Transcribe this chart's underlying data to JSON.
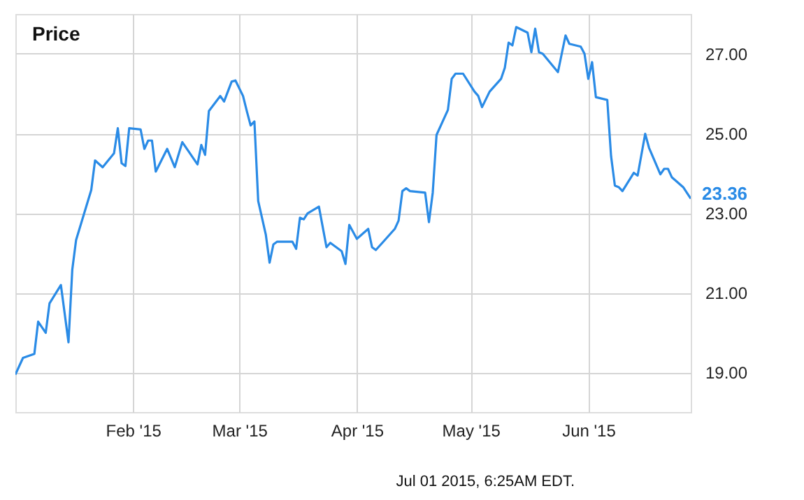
{
  "chart_data": {
    "type": "line",
    "title": "Price",
    "x": [
      "2015-01-01",
      "2015-01-03",
      "2015-01-06",
      "2015-01-07",
      "2015-01-09",
      "2015-01-10",
      "2015-01-13",
      "2015-01-15",
      "2015-01-16",
      "2015-01-17",
      "2015-01-21",
      "2015-01-22",
      "2015-01-24",
      "2015-01-27",
      "2015-01-28",
      "2015-01-29",
      "2015-01-30",
      "2015-01-31",
      "2015-02-03",
      "2015-02-04",
      "2015-02-05",
      "2015-02-06",
      "2015-02-07",
      "2015-02-10",
      "2015-02-12",
      "2015-02-14",
      "2015-02-18",
      "2015-02-19",
      "2015-02-20",
      "2015-02-21",
      "2015-02-24",
      "2015-02-25",
      "2015-02-27",
      "2015-02-28",
      "2015-03-02",
      "2015-03-03",
      "2015-03-04",
      "2015-03-05",
      "2015-03-06",
      "2015-03-08",
      "2015-03-09",
      "2015-03-10",
      "2015-03-11",
      "2015-03-15",
      "2015-03-16",
      "2015-03-17",
      "2015-03-18",
      "2015-03-19",
      "2015-03-22",
      "2015-03-24",
      "2015-03-25",
      "2015-03-28",
      "2015-03-29",
      "2015-03-30",
      "2015-04-01",
      "2015-04-04",
      "2015-04-05",
      "2015-04-06",
      "2015-04-08",
      "2015-04-11",
      "2015-04-12",
      "2015-04-13",
      "2015-04-14",
      "2015-04-15",
      "2015-04-19",
      "2015-04-20",
      "2015-04-21",
      "2015-04-22",
      "2015-04-25",
      "2015-04-26",
      "2015-04-27",
      "2015-04-29",
      "2015-05-02",
      "2015-05-03",
      "2015-05-04",
      "2015-05-06",
      "2015-05-09",
      "2015-05-10",
      "2015-05-11",
      "2015-05-12",
      "2015-05-13",
      "2015-05-16",
      "2015-05-17",
      "2015-05-18",
      "2015-05-19",
      "2015-05-20",
      "2015-05-24",
      "2015-05-26",
      "2015-05-27",
      "2015-05-30",
      "2015-05-31",
      "2015-06-01",
      "2015-06-02",
      "2015-06-03",
      "2015-06-06",
      "2015-06-07",
      "2015-06-08",
      "2015-06-09",
      "2015-06-10",
      "2015-06-13",
      "2015-06-14",
      "2015-06-16",
      "2015-06-17",
      "2015-06-20",
      "2015-06-21",
      "2015-06-22",
      "2015-06-23",
      "2015-06-26",
      "2015-06-28"
    ],
    "series": [
      {
        "color": "#2a8be6",
        "values": [
          18.94,
          19.36,
          19.46,
          20.27,
          19.99,
          20.73,
          21.19,
          19.75,
          21.58,
          22.32,
          23.58,
          24.32,
          24.15,
          24.5,
          25.13,
          24.25,
          24.18,
          25.13,
          25.1,
          24.61,
          24.82,
          24.82,
          24.04,
          24.61,
          24.15,
          24.78,
          24.22,
          24.71,
          24.46,
          25.56,
          25.94,
          25.8,
          26.3,
          26.33,
          25.94,
          25.56,
          25.2,
          25.3,
          23.3,
          22.46,
          21.75,
          22.21,
          22.28,
          22.28,
          22.1,
          22.88,
          22.84,
          22.99,
          23.16,
          22.14,
          22.25,
          22.04,
          21.72,
          22.7,
          22.35,
          22.6,
          22.14,
          22.07,
          22.28,
          22.6,
          22.81,
          23.55,
          23.62,
          23.55,
          23.51,
          22.77,
          23.51,
          24.96,
          25.59,
          26.37,
          26.5,
          26.5,
          26.05,
          25.94,
          25.66,
          26.05,
          26.37,
          26.65,
          27.28,
          27.21,
          27.67,
          27.53,
          27.04,
          27.63,
          27.04,
          27.0,
          26.54,
          27.46,
          27.25,
          27.18,
          27.0,
          26.37,
          26.79,
          25.91,
          25.84,
          24.43,
          23.69,
          23.65,
          23.55,
          24.01,
          23.94,
          24.99,
          24.64,
          23.97,
          24.11,
          24.11,
          23.9,
          23.65,
          23.36
        ]
      }
    ],
    "xlim": [
      "2015-01-01",
      "2015-06-28"
    ],
    "xticks": [
      {
        "value": "2015-02-01",
        "label": "Feb '15"
      },
      {
        "value": "2015-03-01",
        "label": "Mar '15"
      },
      {
        "value": "2015-04-01",
        "label": "Apr '15"
      },
      {
        "value": "2015-05-01",
        "label": "May '15"
      },
      {
        "value": "2015-06-01",
        "label": "Jun '15"
      }
    ],
    "ylim": [
      18,
      28
    ],
    "yticks": [
      {
        "value": 19,
        "label": "19.00"
      },
      {
        "value": 21,
        "label": "21.00"
      },
      {
        "value": 23,
        "label": "23.00"
      },
      {
        "value": 25,
        "label": "25.00"
      },
      {
        "value": 27,
        "label": "27.00"
      }
    ],
    "grid": true,
    "marker": "none",
    "line_style": "solid",
    "annotations": [
      {
        "text": "23.36",
        "x": "2015-06-28",
        "y": 23.36
      },
      "Jul 01 2015, 6:25AM EDT."
    ]
  }
}
